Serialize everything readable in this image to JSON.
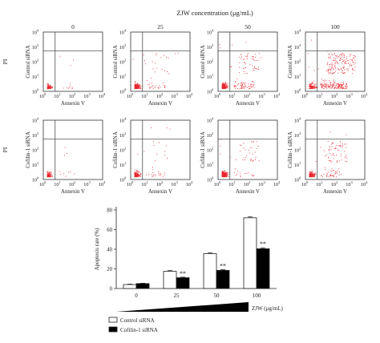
{
  "figure": {
    "concentration_title": "ZJW concentration (μg/mL)",
    "concentrations": [
      "0",
      "25",
      "50",
      "100"
    ],
    "row_labels": [
      "Control siRNA",
      "Cofilin-1 siRNA"
    ],
    "y_axis_outer_label": "PI",
    "x_axis_label": "Annexin V",
    "tick_exponents": [
      "0",
      "1",
      "2",
      "3",
      "4"
    ],
    "tick_base": "10",
    "dot_color": "#e8262e"
  },
  "chart_data": [
    {
      "type": "scatter",
      "title": "ZJW concentration (μg/mL)",
      "xlabel": "Annexin V",
      "ylabel": "PI",
      "x_scale": "log",
      "y_scale": "log",
      "xlim": [
        1,
        10000
      ],
      "ylim": [
        1,
        10000
      ],
      "panels": [
        {
          "row": "Control siRNA",
          "concentration": "0",
          "density": 0.25,
          "early_apoptotic": 0.04,
          "late_apoptotic": 0.01,
          "spread": 0.25
        },
        {
          "row": "Control siRNA",
          "concentration": "25",
          "density": 0.6,
          "early_apoptotic": 0.1,
          "late_apoptotic": 0.08,
          "spread": 0.5
        },
        {
          "row": "Control siRNA",
          "concentration": "50",
          "density": 0.7,
          "early_apoptotic": 0.18,
          "late_apoptotic": 0.17,
          "spread": 0.6
        },
        {
          "row": "Control siRNA",
          "concentration": "100",
          "density": 1.0,
          "early_apoptotic": 0.35,
          "late_apoptotic": 0.37,
          "spread": 1.0
        },
        {
          "row": "Cofilin-1 siRNA",
          "concentration": "0",
          "density": 0.3,
          "early_apoptotic": 0.04,
          "late_apoptotic": 0.01,
          "spread": 0.25
        },
        {
          "row": "Cofilin-1 siRNA",
          "concentration": "25",
          "density": 0.55,
          "early_apoptotic": 0.06,
          "late_apoptotic": 0.05,
          "spread": 0.45
        },
        {
          "row": "Cofilin-1 siRNA",
          "concentration": "50",
          "density": 0.65,
          "early_apoptotic": 0.09,
          "late_apoptotic": 0.09,
          "spread": 0.55
        },
        {
          "row": "Cofilin-1 siRNA",
          "concentration": "100",
          "density": 0.6,
          "early_apoptotic": 0.2,
          "late_apoptotic": 0.2,
          "spread": 0.6
        }
      ]
    },
    {
      "type": "bar",
      "title": "",
      "xlabel": "ZJW (μg/mL)",
      "ylabel": "Apoptosis rate (%)",
      "categories": [
        "0",
        "25",
        "50",
        "100"
      ],
      "ylim": [
        0,
        80
      ],
      "yticks": [
        "0",
        "20",
        "40",
        "60",
        "80"
      ],
      "series": [
        {
          "name": "Control siRNA",
          "color": "#ffffff",
          "values": [
            4,
            17.5,
            35.5,
            72
          ],
          "errors": [
            0.5,
            0.8,
            1.0,
            1.0
          ]
        },
        {
          "name": "Cofilin-1 siRNA",
          "color": "#000000",
          "values": [
            5,
            11,
            18.5,
            40.5
          ],
          "errors": [
            0.4,
            0.6,
            0.8,
            1.0
          ]
        }
      ],
      "annotations": [
        {
          "category": "25",
          "series": "Cofilin-1 siRNA",
          "text": "**"
        },
        {
          "category": "50",
          "series": "Cofilin-1 siRNA",
          "text": "**"
        },
        {
          "category": "100",
          "series": "Cofilin-1 siRNA",
          "text": "**"
        }
      ],
      "legend_position": "bottom-left"
    }
  ]
}
